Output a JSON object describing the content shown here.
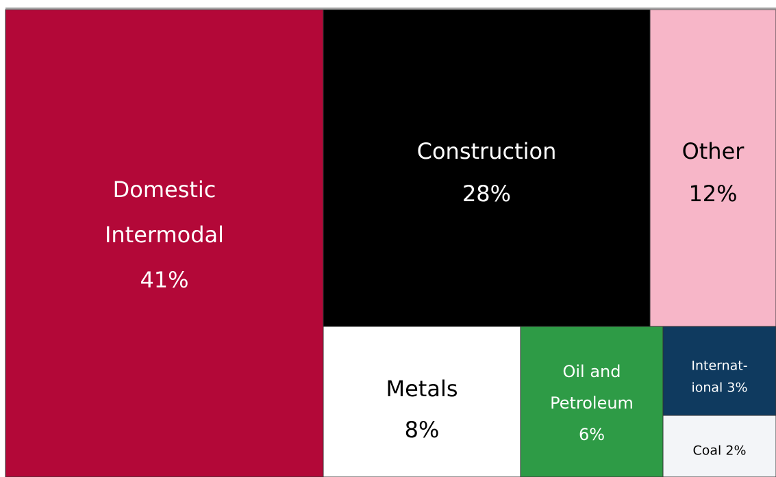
{
  "chart_data": {
    "type": "treemap",
    "title": "",
    "segments": [
      {
        "name": "Domestic Intermodal",
        "value": 41,
        "label_lines": [
          "Domestic",
          "Intermodal",
          "41%"
        ],
        "color": "#B30838",
        "text_color": "#FFFFFF"
      },
      {
        "name": "Construction",
        "value": 28,
        "label_lines": [
          "Construction",
          "28%"
        ],
        "color": "#000000",
        "text_color": "#FFFFFF"
      },
      {
        "name": "Other",
        "value": 12,
        "label_lines": [
          "Other",
          "12%"
        ],
        "color": "#F7B6C8",
        "text_color": "#000000"
      },
      {
        "name": "Metals",
        "value": 8,
        "label_lines": [
          "Metals",
          "8%"
        ],
        "color": "#FFFFFF",
        "text_color": "#000000"
      },
      {
        "name": "Oil and Petroleum",
        "value": 6,
        "label_lines": [
          "Oil and",
          "Petroleum",
          "6%"
        ],
        "color": "#2E9B46",
        "text_color": "#FFFFFF"
      },
      {
        "name": "International",
        "value": 3,
        "label_lines": [
          "Internat-",
          "ional 3%"
        ],
        "color": "#0F3A5F",
        "text_color": "#FFFFFF"
      },
      {
        "name": "Coal",
        "value": 2,
        "label_lines": [
          "Coal 2%"
        ],
        "color": "#F3F5F8",
        "text_color": "#000000"
      }
    ]
  }
}
